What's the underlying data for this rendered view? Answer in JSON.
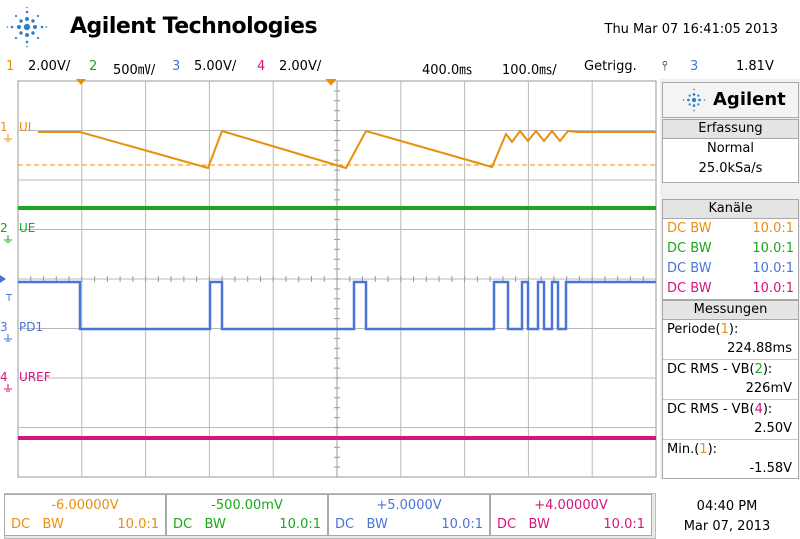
{
  "header": {
    "brand": "Agilent Technologies",
    "datetime": "Thu Mar 07 16:41:05 2013",
    "logo_icon": "agilent-spark-icon"
  },
  "status": {
    "ch1_num": "1",
    "ch1_scale": "2.00V/",
    "ch2_num": "2",
    "ch2_scale": "500㎷/",
    "ch3_num": "3",
    "ch3_scale": "5.00V/",
    "ch4_num": "4",
    "ch4_scale": "2.00V/",
    "timebase": "400.0㎳",
    "delay": "100.0㎳/",
    "trigger_mode": "Getrigg.",
    "trigger_symbol": "⫯",
    "trigger_channel": "3",
    "trigger_level": "1.81V"
  },
  "waveform_labels": {
    "ch1": "1",
    "ch1_name": "UI",
    "ch2": "2",
    "ch2_name": "UE",
    "ch3": "3",
    "ch3_name": "PD1",
    "ch4": "4",
    "ch4_name": "UREF",
    "trigger_marker": "T"
  },
  "panel": {
    "brand": "Agilent",
    "acq_title": "Erfassung",
    "acq_mode": "Normal",
    "acq_rate": "25.0kSa/s",
    "channels_title": "Kanäle",
    "channels": [
      {
        "coupling": "DC",
        "bw": "BW",
        "probe": "10.0:1"
      },
      {
        "coupling": "DC",
        "bw": "BW",
        "probe": "10.0:1"
      },
      {
        "coupling": "DC",
        "bw": "BW",
        "probe": "10.0:1"
      },
      {
        "coupling": "DC",
        "bw": "BW",
        "probe": "10.0:1"
      }
    ],
    "meas_title": "Messungen",
    "measurements": [
      {
        "label": "Periode(",
        "ch": "1",
        "close": "):",
        "value": "224.88ms"
      },
      {
        "label": "DC RMS - VB(",
        "ch": "2",
        "close": "):",
        "value": "226mV"
      },
      {
        "label": "DC RMS - VB(",
        "ch": "4",
        "close": "):",
        "value": "2.50V"
      },
      {
        "label": "Min.(",
        "ch": "1",
        "close": "):",
        "value": "-1.58V"
      }
    ]
  },
  "footer": {
    "offsets": [
      {
        "value": "-6.00000V",
        "coupling": "DC",
        "bw": "BW",
        "probe": "10.0:1"
      },
      {
        "value": "-500.00mV",
        "coupling": "DC",
        "bw": "BW",
        "probe": "10.0:1"
      },
      {
        "value": "+5.0000V",
        "coupling": "DC",
        "bw": "BW",
        "probe": "10.0:1"
      },
      {
        "value": "+4.00000V",
        "coupling": "DC",
        "bw": "BW",
        "probe": "10.0:1"
      }
    ],
    "time": "04:40 PM",
    "date": "Mar 07, 2013"
  },
  "colors": {
    "ch1": "#e8900e",
    "ch2": "#19a81b",
    "ch3": "#4a74d8",
    "ch4": "#d4157f",
    "grid": "#b4b4b4",
    "panel_bg": "#f0f0f0"
  }
}
